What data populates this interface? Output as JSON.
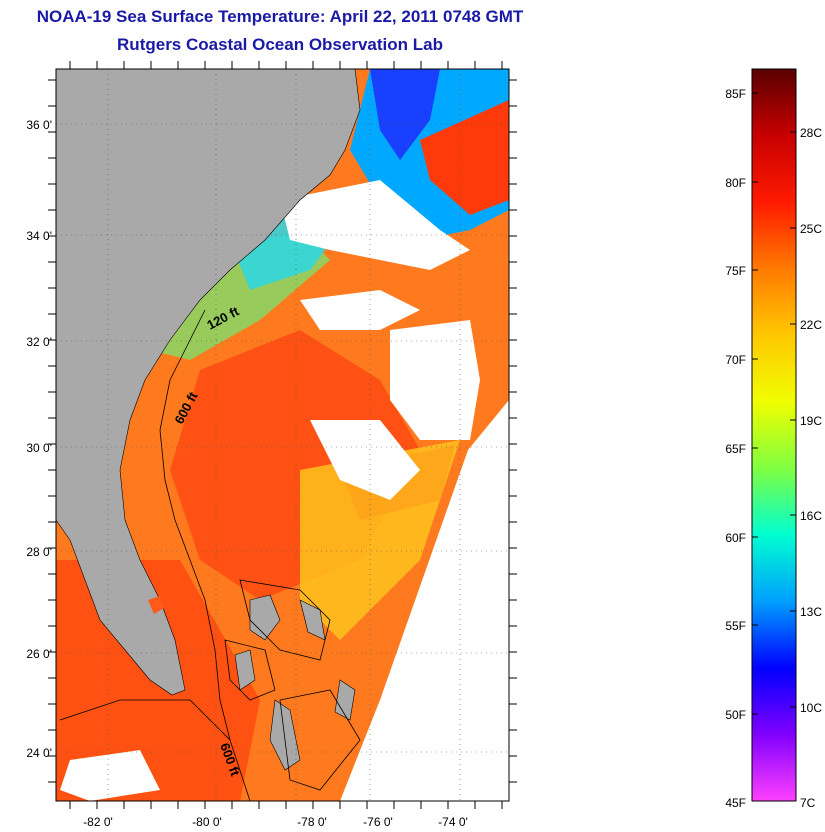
{
  "header": {
    "title": "NOAA-19 Sea Surface Temperature:  April 22, 2011 0748 GMT",
    "subtitle": "Rutgers Coastal Ocean Observation Lab"
  },
  "map": {
    "lon_labels": [
      "-82 0'",
      "-80 0'",
      "-78 0'",
      "-76 0'",
      "-74 0'"
    ],
    "lat_labels": [
      "36 0'",
      "34 0'",
      "32 0'",
      "30 0'",
      "28 0'",
      "26 0'",
      "24 0'"
    ],
    "contour_labels": [
      "120 ft",
      "600 ft",
      "600 ft"
    ],
    "colors": {
      "land": "#a9a9a9",
      "clouds": "#ffffff",
      "warm": "#ff3a12",
      "warmer": "#ff6a1a",
      "mid": "#ffb21a"
    }
  },
  "colorbar": {
    "f_labels": [
      "85F",
      "80F",
      "75F",
      "70F",
      "65F",
      "60F",
      "55F",
      "50F",
      "45F"
    ],
    "c_labels": [
      "28C",
      "25C",
      "22C",
      "19C",
      "16C",
      "13C",
      "10C",
      "7C"
    ],
    "stops": [
      "#5a0000",
      "#c80000",
      "#ff1a00",
      "#ff7a00",
      "#ffc800",
      "#f0ff00",
      "#80ff40",
      "#00ffd0",
      "#00a0ff",
      "#0000ff",
      "#8000ff",
      "#ff40ff"
    ]
  }
}
